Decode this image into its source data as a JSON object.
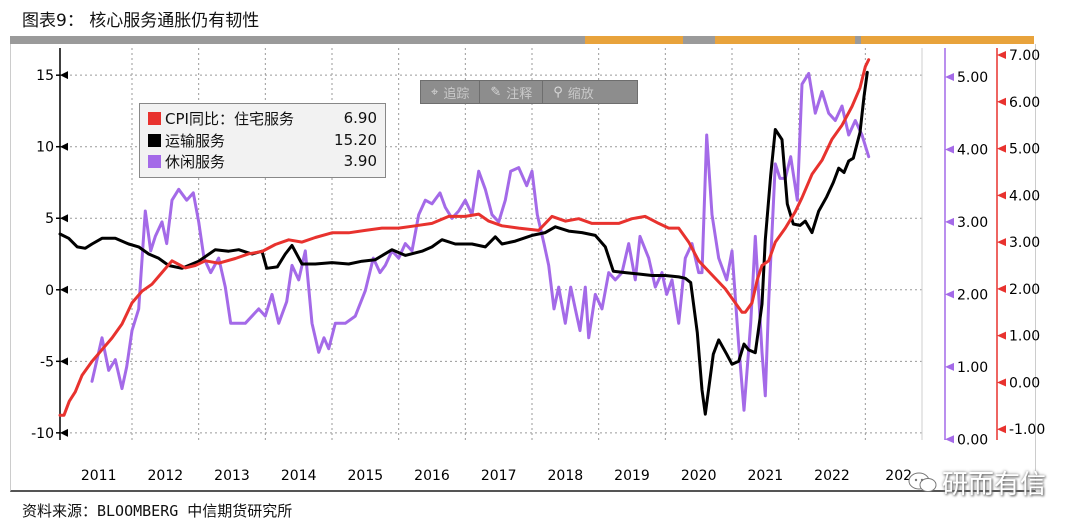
{
  "figure": {
    "title": "图表9：  核心服务通胀仍有韧性",
    "source": "资料来源：BLOOMBERG   中信期货研究所"
  },
  "toolbar": {
    "buttons": [
      {
        "label": "追踪",
        "icon": "crosshair-icon"
      },
      {
        "label": "注释",
        "icon": "pencil-icon"
      },
      {
        "label": "缩放",
        "icon": "magnifier-icon"
      }
    ]
  },
  "watermark": {
    "text": "研而有信"
  },
  "colors": {
    "red": "#e8322e",
    "black": "#000000",
    "purple": "#a46ae8",
    "grid": "#9a9a9a"
  },
  "chart_data": {
    "type": "line",
    "x_ticks": [
      "2011",
      "2012",
      "2013",
      "2014",
      "2015",
      "2016",
      "2017",
      "2018",
      "2019",
      "2020",
      "2021",
      "2022",
      "202"
    ],
    "xlim": [
      2010.42,
      2023.35
    ],
    "axes": {
      "left": {
        "ylim": [
          -10.5,
          16.9
        ],
        "ticks": [
          -10,
          -5,
          0,
          5,
          10,
          15
        ]
      },
      "purple_right": {
        "ylim": [
          -0.01,
          5.4
        ],
        "ticks": [
          "0.00",
          "1.00",
          "2.00",
          "3.00",
          "4.00",
          "5.00"
        ]
      },
      "red_right": {
        "ylim": [
          -1.23,
          7.15
        ],
        "ticks": [
          "-1.00",
          "0.00",
          "1.00",
          "2.00",
          "3.00",
          "4.00",
          "5.00",
          "6.00",
          "7.00"
        ]
      }
    },
    "series": [
      {
        "name": "运输服务",
        "value": "15.20",
        "color": "#000000",
        "axis": "left",
        "points": [
          [
            2010.42,
            3.9
          ],
          [
            2010.55,
            3.6
          ],
          [
            2010.68,
            3.0
          ],
          [
            2010.8,
            2.9
          ],
          [
            2010.9,
            3.2
          ],
          [
            2011.05,
            3.6
          ],
          [
            2011.25,
            3.6
          ],
          [
            2011.45,
            3.2
          ],
          [
            2011.6,
            3.0
          ],
          [
            2011.75,
            2.5
          ],
          [
            2011.9,
            2.2
          ],
          [
            2012.05,
            1.7
          ],
          [
            2012.25,
            1.5
          ],
          [
            2012.5,
            2.0
          ],
          [
            2012.75,
            2.8
          ],
          [
            2012.95,
            2.7
          ],
          [
            2013.1,
            2.8
          ],
          [
            2013.3,
            2.5
          ],
          [
            2013.45,
            2.7
          ],
          [
            2013.52,
            1.5
          ],
          [
            2013.68,
            1.6
          ],
          [
            2013.8,
            2.5
          ],
          [
            2013.9,
            3.1
          ],
          [
            2014.05,
            1.8
          ],
          [
            2014.25,
            1.8
          ],
          [
            2014.5,
            1.9
          ],
          [
            2014.75,
            1.8
          ],
          [
            2014.95,
            2.0
          ],
          [
            2015.15,
            2.1
          ],
          [
            2015.4,
            2.8
          ],
          [
            2015.6,
            2.4
          ],
          [
            2015.85,
            2.7
          ],
          [
            2016.0,
            3.0
          ],
          [
            2016.15,
            3.5
          ],
          [
            2016.35,
            3.2
          ],
          [
            2016.6,
            3.2
          ],
          [
            2016.8,
            3.0
          ],
          [
            2016.95,
            3.7
          ],
          [
            2017.05,
            3.2
          ],
          [
            2017.25,
            3.4
          ],
          [
            2017.5,
            3.8
          ],
          [
            2017.7,
            4.0
          ],
          [
            2017.85,
            4.4
          ],
          [
            2018.05,
            4.1
          ],
          [
            2018.25,
            4.0
          ],
          [
            2018.45,
            3.8
          ],
          [
            2018.6,
            3.0
          ],
          [
            2018.72,
            1.3
          ],
          [
            2018.9,
            1.2
          ],
          [
            2019.1,
            1.1
          ],
          [
            2019.3,
            1.0
          ],
          [
            2019.5,
            1.0
          ],
          [
            2019.7,
            0.9
          ],
          [
            2019.8,
            0.8
          ],
          [
            2019.88,
            0.5
          ],
          [
            2019.98,
            -3.0
          ],
          [
            2020.05,
            -7.0
          ],
          [
            2020.1,
            -8.7
          ],
          [
            2020.22,
            -4.5
          ],
          [
            2020.3,
            -3.5
          ],
          [
            2020.42,
            -4.5
          ],
          [
            2020.5,
            -5.2
          ],
          [
            2020.6,
            -5.0
          ],
          [
            2020.68,
            -3.8
          ],
          [
            2020.75,
            -4.2
          ],
          [
            2020.85,
            -4.4
          ],
          [
            2020.95,
            -1.0
          ],
          [
            2021.0,
            3.5
          ],
          [
            2021.08,
            8.0
          ],
          [
            2021.15,
            11.2
          ],
          [
            2021.25,
            10.5
          ],
          [
            2021.33,
            6.0
          ],
          [
            2021.42,
            4.6
          ],
          [
            2021.52,
            4.5
          ],
          [
            2021.6,
            4.8
          ],
          [
            2021.7,
            4.0
          ],
          [
            2021.8,
            5.5
          ],
          [
            2021.92,
            6.5
          ],
          [
            2022.02,
            7.5
          ],
          [
            2022.1,
            8.5
          ],
          [
            2022.18,
            8.2
          ],
          [
            2022.25,
            9.0
          ],
          [
            2022.32,
            9.2
          ],
          [
            2022.42,
            11.0
          ],
          [
            2022.48,
            13.5
          ],
          [
            2022.53,
            15.2
          ]
        ]
      },
      {
        "name": "CPI同比：住宅服务",
        "value": "6.90",
        "color": "#e8322e",
        "axis": "red_right",
        "points": [
          [
            2010.42,
            -0.7
          ],
          [
            2010.48,
            -0.7
          ],
          [
            2010.56,
            -0.4
          ],
          [
            2010.65,
            -0.2
          ],
          [
            2010.75,
            0.15
          ],
          [
            2010.9,
            0.45
          ],
          [
            2011.05,
            0.7
          ],
          [
            2011.2,
            0.95
          ],
          [
            2011.35,
            1.25
          ],
          [
            2011.5,
            1.7
          ],
          [
            2011.65,
            1.95
          ],
          [
            2011.8,
            2.1
          ],
          [
            2011.95,
            2.35
          ],
          [
            2012.1,
            2.6
          ],
          [
            2012.3,
            2.45
          ],
          [
            2012.45,
            2.5
          ],
          [
            2012.6,
            2.6
          ],
          [
            2012.8,
            2.55
          ],
          [
            2013.05,
            2.65
          ],
          [
            2013.25,
            2.75
          ],
          [
            2013.45,
            2.8
          ],
          [
            2013.65,
            2.95
          ],
          [
            2013.85,
            3.05
          ],
          [
            2014.05,
            3.0
          ],
          [
            2014.25,
            3.1
          ],
          [
            2014.5,
            3.2
          ],
          [
            2014.75,
            3.2
          ],
          [
            2015.0,
            3.25
          ],
          [
            2015.25,
            3.3
          ],
          [
            2015.5,
            3.3
          ],
          [
            2015.75,
            3.35
          ],
          [
            2016.0,
            3.4
          ],
          [
            2016.25,
            3.55
          ],
          [
            2016.5,
            3.55
          ],
          [
            2016.7,
            3.6
          ],
          [
            2016.85,
            3.45
          ],
          [
            2017.05,
            3.35
          ],
          [
            2017.3,
            3.3
          ],
          [
            2017.6,
            3.25
          ],
          [
            2017.8,
            3.55
          ],
          [
            2018.0,
            3.45
          ],
          [
            2018.2,
            3.5
          ],
          [
            2018.4,
            3.4
          ],
          [
            2018.6,
            3.4
          ],
          [
            2018.8,
            3.4
          ],
          [
            2019.0,
            3.5
          ],
          [
            2019.2,
            3.55
          ],
          [
            2019.4,
            3.4
          ],
          [
            2019.55,
            3.3
          ],
          [
            2019.7,
            3.3
          ],
          [
            2019.85,
            3.0
          ],
          [
            2020.0,
            2.6
          ],
          [
            2020.2,
            2.3
          ],
          [
            2020.4,
            2.0
          ],
          [
            2020.55,
            1.7
          ],
          [
            2020.65,
            1.5
          ],
          [
            2020.7,
            1.5
          ],
          [
            2020.8,
            1.7
          ],
          [
            2020.88,
            2.2
          ],
          [
            2020.95,
            2.5
          ],
          [
            2021.05,
            2.6
          ],
          [
            2021.15,
            3.0
          ],
          [
            2021.3,
            3.3
          ],
          [
            2021.45,
            3.65
          ],
          [
            2021.55,
            3.95
          ],
          [
            2021.7,
            4.45
          ],
          [
            2021.85,
            4.75
          ],
          [
            2022.0,
            5.2
          ],
          [
            2022.15,
            5.5
          ],
          [
            2022.3,
            5.9
          ],
          [
            2022.42,
            6.3
          ],
          [
            2022.5,
            6.75
          ],
          [
            2022.55,
            6.9
          ]
        ]
      },
      {
        "name": "休闲服务",
        "value": "3.90",
        "color": "#a46ae8",
        "axis": "purple_right",
        "points": [
          [
            2010.9,
            0.8
          ],
          [
            2011.05,
            1.4
          ],
          [
            2011.15,
            0.95
          ],
          [
            2011.25,
            1.1
          ],
          [
            2011.35,
            0.7
          ],
          [
            2011.42,
            1.0
          ],
          [
            2011.5,
            1.5
          ],
          [
            2011.6,
            1.8
          ],
          [
            2011.7,
            3.15
          ],
          [
            2011.78,
            2.6
          ],
          [
            2011.85,
            2.8
          ],
          [
            2011.95,
            3.0
          ],
          [
            2012.02,
            2.7
          ],
          [
            2012.1,
            3.3
          ],
          [
            2012.2,
            3.45
          ],
          [
            2012.32,
            3.3
          ],
          [
            2012.42,
            3.4
          ],
          [
            2012.5,
            3.0
          ],
          [
            2012.58,
            2.5
          ],
          [
            2012.68,
            2.3
          ],
          [
            2012.8,
            2.5
          ],
          [
            2012.9,
            2.1
          ],
          [
            2012.98,
            1.6
          ],
          [
            2013.2,
            1.6
          ],
          [
            2013.4,
            1.8
          ],
          [
            2013.5,
            1.7
          ],
          [
            2013.6,
            2.0
          ],
          [
            2013.7,
            1.6
          ],
          [
            2013.82,
            1.9
          ],
          [
            2013.9,
            2.4
          ],
          [
            2014.0,
            2.2
          ],
          [
            2014.1,
            2.6
          ],
          [
            2014.2,
            1.6
          ],
          [
            2014.3,
            1.2
          ],
          [
            2014.38,
            1.4
          ],
          [
            2014.45,
            1.25
          ],
          [
            2014.55,
            1.6
          ],
          [
            2014.7,
            1.6
          ],
          [
            2014.85,
            1.7
          ],
          [
            2015.0,
            2.05
          ],
          [
            2015.12,
            2.5
          ],
          [
            2015.22,
            2.3
          ],
          [
            2015.3,
            2.4
          ],
          [
            2015.4,
            2.6
          ],
          [
            2015.5,
            2.5
          ],
          [
            2015.6,
            2.7
          ],
          [
            2015.7,
            2.6
          ],
          [
            2015.8,
            3.1
          ],
          [
            2015.9,
            3.3
          ],
          [
            2016.0,
            3.25
          ],
          [
            2016.12,
            3.4
          ],
          [
            2016.2,
            3.2
          ],
          [
            2016.3,
            3.05
          ],
          [
            2016.4,
            3.15
          ],
          [
            2016.5,
            3.3
          ],
          [
            2016.6,
            3.1
          ],
          [
            2016.7,
            3.7
          ],
          [
            2016.8,
            3.45
          ],
          [
            2016.9,
            3.1
          ],
          [
            2017.0,
            3.0
          ],
          [
            2017.1,
            3.3
          ],
          [
            2017.18,
            3.7
          ],
          [
            2017.3,
            3.75
          ],
          [
            2017.42,
            3.5
          ],
          [
            2017.5,
            3.7
          ],
          [
            2017.58,
            3.1
          ],
          [
            2017.68,
            2.7
          ],
          [
            2017.75,
            2.4
          ],
          [
            2017.83,
            1.8
          ],
          [
            2017.9,
            2.1
          ],
          [
            2018.0,
            1.6
          ],
          [
            2018.08,
            2.1
          ],
          [
            2018.15,
            1.8
          ],
          [
            2018.22,
            1.5
          ],
          [
            2018.3,
            2.1
          ],
          [
            2018.35,
            1.4
          ],
          [
            2018.45,
            2.0
          ],
          [
            2018.55,
            1.8
          ],
          [
            2018.65,
            2.3
          ],
          [
            2018.75,
            2.2
          ],
          [
            2018.85,
            2.3
          ],
          [
            2018.95,
            2.7
          ],
          [
            2019.05,
            2.2
          ],
          [
            2019.12,
            2.8
          ],
          [
            2019.25,
            2.5
          ],
          [
            2019.35,
            2.1
          ],
          [
            2019.45,
            2.3
          ],
          [
            2019.52,
            2.0
          ],
          [
            2019.6,
            2.2
          ],
          [
            2019.7,
            1.6
          ],
          [
            2019.8,
            2.5
          ],
          [
            2019.9,
            2.7
          ],
          [
            2020.0,
            2.3
          ],
          [
            2020.05,
            2.3
          ],
          [
            2020.12,
            4.2
          ],
          [
            2020.2,
            3.1
          ],
          [
            2020.3,
            2.5
          ],
          [
            2020.42,
            2.2
          ],
          [
            2020.5,
            2.6
          ],
          [
            2020.6,
            1.3
          ],
          [
            2020.68,
            0.4
          ],
          [
            2020.78,
            1.6
          ],
          [
            2020.85,
            2.8
          ],
          [
            2020.95,
            1.2
          ],
          [
            2021.0,
            0.6
          ],
          [
            2021.05,
            1.9
          ],
          [
            2021.15,
            3.8
          ],
          [
            2021.22,
            3.6
          ],
          [
            2021.3,
            3.6
          ],
          [
            2021.38,
            3.9
          ],
          [
            2021.48,
            3.3
          ],
          [
            2021.55,
            4.9
          ],
          [
            2021.65,
            5.05
          ],
          [
            2021.75,
            4.5
          ],
          [
            2021.85,
            4.8
          ],
          [
            2021.95,
            4.5
          ],
          [
            2022.05,
            4.4
          ],
          [
            2022.15,
            4.6
          ],
          [
            2022.25,
            4.2
          ],
          [
            2022.35,
            4.4
          ],
          [
            2022.45,
            4.2
          ],
          [
            2022.55,
            3.9
          ]
        ]
      }
    ],
    "legend": "top-left",
    "grid": true
  }
}
